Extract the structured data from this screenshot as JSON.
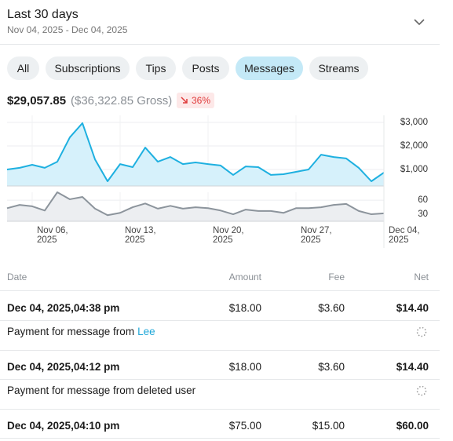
{
  "header": {
    "title": "Last 30 days",
    "date_range": "Nov 04, 2025 - Dec 04, 2025"
  },
  "tabs": [
    "All",
    "Subscriptions",
    "Tips",
    "Posts",
    "Messages",
    "Streams"
  ],
  "active_tab": 4,
  "summary": {
    "net": "$29,057.85",
    "gross": "($36,322.85 Gross)",
    "change": "36%"
  },
  "chart_data": [
    {
      "type": "area",
      "color": "#1eb0e0",
      "fill_color": "#d6f1fb",
      "x": [
        0,
        1,
        2,
        3,
        4,
        5,
        6,
        7,
        8,
        9,
        10,
        11,
        12,
        13,
        14,
        15,
        16,
        17,
        18,
        19,
        20,
        21,
        22,
        23,
        24,
        25,
        26,
        27,
        28,
        29,
        30
      ],
      "values": [
        1000,
        1070,
        1200,
        1070,
        1330,
        2370,
        2970,
        1430,
        500,
        1230,
        1100,
        1930,
        1330,
        1530,
        1230,
        1300,
        1230,
        1170,
        770,
        1130,
        1100,
        770,
        800,
        900,
        1000,
        1630,
        1530,
        1470,
        1070,
        500,
        870
      ],
      "xlim": [
        0,
        30
      ],
      "ylim": [
        300,
        3300
      ],
      "yticks": [
        {
          "value": 1000,
          "label": "$1,000"
        },
        {
          "value": 2000,
          "label": "$2,000"
        },
        {
          "value": 3000,
          "label": "$3,000"
        }
      ]
    },
    {
      "type": "area",
      "color": "#8c949c",
      "fill_color": "#eceef1",
      "x": [
        0,
        1,
        2,
        3,
        4,
        5,
        6,
        7,
        8,
        9,
        10,
        11,
        12,
        13,
        14,
        15,
        16,
        17,
        18,
        19,
        20,
        21,
        22,
        23,
        24,
        25,
        26,
        27,
        28,
        29,
        30
      ],
      "values": [
        43,
        50,
        47,
        38,
        77,
        62,
        67,
        42,
        28,
        33,
        45,
        53,
        42,
        48,
        42,
        45,
        43,
        38,
        30,
        40,
        37,
        37,
        33,
        43,
        43,
        45,
        50,
        52,
        37,
        30,
        32
      ],
      "xlim": [
        0,
        30
      ],
      "ylim": [
        15,
        77
      ],
      "yticks": [
        30,
        60
      ],
      "xticks": [
        {
          "value": 2,
          "label": "Nov 06, 2025"
        },
        {
          "value": 9,
          "label": "Nov 13, 2025"
        },
        {
          "value": 16,
          "label": "Nov 20, 2025"
        },
        {
          "value": 23,
          "label": "Nov 27, 2025"
        },
        {
          "value": 30,
          "label": "Dec 04, 2025"
        }
      ]
    }
  ],
  "table": {
    "columns": [
      "Date",
      "Amount",
      "Fee",
      "Net"
    ],
    "rows": [
      {
        "date": "Dec 04, 2025,04:38 pm",
        "amount": "$18.00",
        "fee": "$3.60",
        "net": "$14.40",
        "description": {
          "text": "Payment for message from",
          "user": "Lee"
        }
      },
      {
        "date": "Dec 04, 2025,04:12 pm",
        "amount": "$18.00",
        "fee": "$3.60",
        "net": "$14.40",
        "description": {
          "text": "Payment for message from deleted user"
        }
      },
      {
        "date": "Dec 04, 2025,04:10 pm",
        "amount": "$75.00",
        "fee": "$15.00",
        "net": "$60.00"
      }
    ]
  }
}
